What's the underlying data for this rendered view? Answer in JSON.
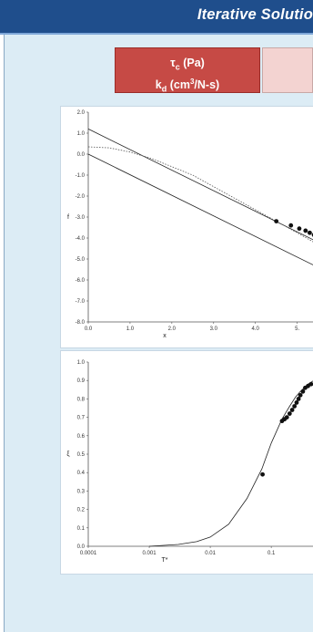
{
  "header": {
    "title": "Iterative Solutio"
  },
  "params": {
    "tau_symbol": "τ",
    "tau_sub": "c",
    "tau_unit": " (Pa)",
    "kd_symbol": "k",
    "kd_sub": "d",
    "kd_unit_a": " (cm",
    "kd_unit_sup": "3",
    "kd_unit_b": "/N-s)"
  },
  "chart_data": [
    {
      "type": "line",
      "xlabel": "x",
      "ylabel": "f",
      "xlim": [
        0.0,
        5.4
      ],
      "ylim": [
        -8.0,
        2.0
      ],
      "x_ticks": [
        "0.0",
        "1.0",
        "2.0",
        "3.0",
        "4.0",
        "5."
      ],
      "y_ticks": [
        "2.0",
        "1.0",
        "0.0",
        "-1.0",
        "-2.0",
        "-3.0",
        "-4.0",
        "-5.0",
        "-6.0",
        "-7.0",
        "-8.0"
      ],
      "grid": false,
      "series": [
        {
          "style": "solid",
          "x": [
            0.0,
            5.4
          ],
          "y": [
            1.2,
            -4.1
          ]
        },
        {
          "style": "dotted",
          "x": [
            0.0,
            0.5,
            1.0,
            1.5,
            2.0,
            2.5,
            3.0,
            3.5,
            4.0,
            4.5,
            5.0,
            5.4
          ],
          "y": [
            0.35,
            0.3,
            0.1,
            -0.2,
            -0.6,
            -1.0,
            -1.55,
            -2.1,
            -2.65,
            -3.2,
            -3.75,
            -4.2
          ]
        },
        {
          "style": "solid",
          "x": [
            0.0,
            5.4
          ],
          "y": [
            0.0,
            -5.3
          ]
        },
        {
          "style": "markers",
          "x": [
            4.5,
            4.85,
            5.05,
            5.2,
            5.3,
            5.4
          ],
          "y": [
            -3.2,
            -3.4,
            -3.55,
            -3.65,
            -3.75,
            -3.85
          ]
        }
      ]
    },
    {
      "type": "line",
      "xlabel": "T*",
      "ylabel": "ξ",
      "xscale": "log",
      "xlim": [
        0.0001,
        0.5
      ],
      "ylim": [
        0.0,
        1.0
      ],
      "x_ticks": [
        "0.0001",
        "0.001",
        "0.01",
        "0.1"
      ],
      "y_ticks": [
        "1.0",
        "0.9",
        "0.8",
        "0.7",
        "0.6",
        "0.5",
        "0.4",
        "0.3",
        "0.2",
        "0.1",
        "0.0"
      ],
      "grid": false,
      "series": [
        {
          "style": "solid",
          "x": [
            0.001,
            0.003,
            0.006,
            0.01,
            0.02,
            0.04,
            0.07,
            0.1,
            0.15,
            0.2,
            0.25,
            0.3,
            0.4,
            0.5
          ],
          "y": [
            0.0,
            0.01,
            0.025,
            0.05,
            0.12,
            0.26,
            0.42,
            0.56,
            0.69,
            0.76,
            0.81,
            0.84,
            0.88,
            0.9
          ]
        },
        {
          "style": "markers",
          "x": [
            0.072,
            0.15,
            0.165,
            0.18,
            0.2,
            0.22,
            0.24,
            0.26,
            0.28,
            0.3,
            0.33,
            0.36,
            0.4,
            0.45
          ],
          "y": [
            0.39,
            0.68,
            0.69,
            0.7,
            0.72,
            0.74,
            0.76,
            0.78,
            0.8,
            0.82,
            0.84,
            0.86,
            0.87,
            0.88
          ]
        }
      ]
    }
  ]
}
